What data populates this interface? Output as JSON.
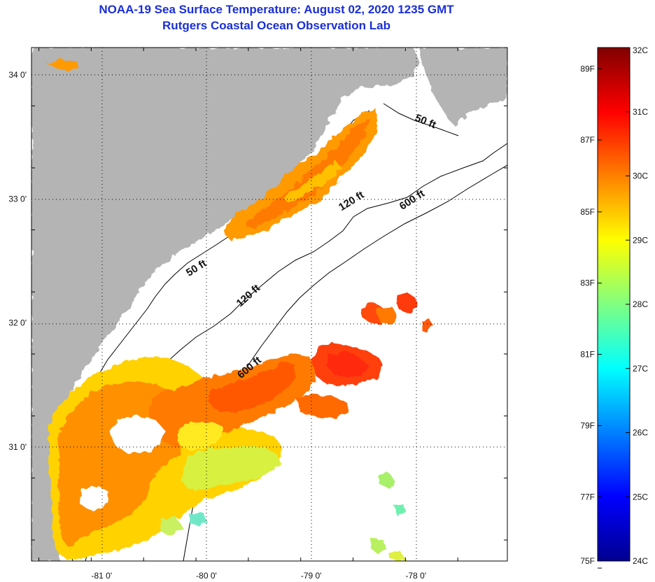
{
  "title_line1": "NOAA-19 Sea Surface Temperature:  August 02, 2020 1235 GMT",
  "title_line2": "Rutgers Coastal Ocean Observation Lab",
  "map": {
    "lat_labels": [
      {
        "text": "34 0'",
        "lat": 34.0
      },
      {
        "text": "33 0'",
        "lat": 33.0
      },
      {
        "text": "32 0'",
        "lat": 32.0
      },
      {
        "text": "31 0'",
        "lat": 31.0
      }
    ],
    "lon_labels": [
      {
        "text": "-81 0'",
        "lon": -81.0
      },
      {
        "text": "-80 0'",
        "lon": -80.0
      },
      {
        "text": "-79 0'",
        "lon": -79.0
      },
      {
        "text": "-78 0'",
        "lon": -78.0
      }
    ],
    "depth_labels": [
      {
        "text": "50 ft",
        "lon": -77.92,
        "lat": 33.6,
        "angle": 22
      },
      {
        "text": "50 ft",
        "lon": -80.08,
        "lat": 32.42,
        "angle": -32
      },
      {
        "text": "120 ft",
        "lon": -78.6,
        "lat": 32.96,
        "angle": -32
      },
      {
        "text": "120 ft",
        "lon": -79.58,
        "lat": 32.2,
        "angle": -42
      },
      {
        "text": "600 ft",
        "lon": -78.02,
        "lat": 32.97,
        "angle": -33
      },
      {
        "text": "600 ft",
        "lon": -79.57,
        "lat": 31.62,
        "angle": -40
      }
    ],
    "colors": {
      "land": "#b4b4b4",
      "ocean": "#ffffff",
      "grid": "#000000",
      "title": "#1a2fd6"
    }
  },
  "colorbar": {
    "left_labels": [
      {
        "text": "89F",
        "temp_c": 31.67
      },
      {
        "text": "87F",
        "temp_c": 30.56
      },
      {
        "text": "85F",
        "temp_c": 29.44
      },
      {
        "text": "83F",
        "temp_c": 28.33
      },
      {
        "text": "81F",
        "temp_c": 27.22
      },
      {
        "text": "79F",
        "temp_c": 26.11
      },
      {
        "text": "77F",
        "temp_c": 25.0
      },
      {
        "text": "75F",
        "temp_c": 23.89
      }
    ],
    "right_labels": [
      {
        "text": "32C",
        "temp_c": 32
      },
      {
        "text": "31C",
        "temp_c": 31
      },
      {
        "text": "30C",
        "temp_c": 30
      },
      {
        "text": "29C",
        "temp_c": 29
      },
      {
        "text": "28C",
        "temp_c": 28
      },
      {
        "text": "27C",
        "temp_c": 27
      },
      {
        "text": "26C",
        "temp_c": 26
      },
      {
        "text": "25C",
        "temp_c": 25
      },
      {
        "text": "24C",
        "temp_c": 24
      }
    ],
    "range_c": [
      24,
      32
    ],
    "colormap": [
      "#00008f",
      "#0000ff",
      "#0080ff",
      "#00ffff",
      "#80ff80",
      "#ffff00",
      "#ff8000",
      "#ff0000",
      "#800000"
    ]
  }
}
